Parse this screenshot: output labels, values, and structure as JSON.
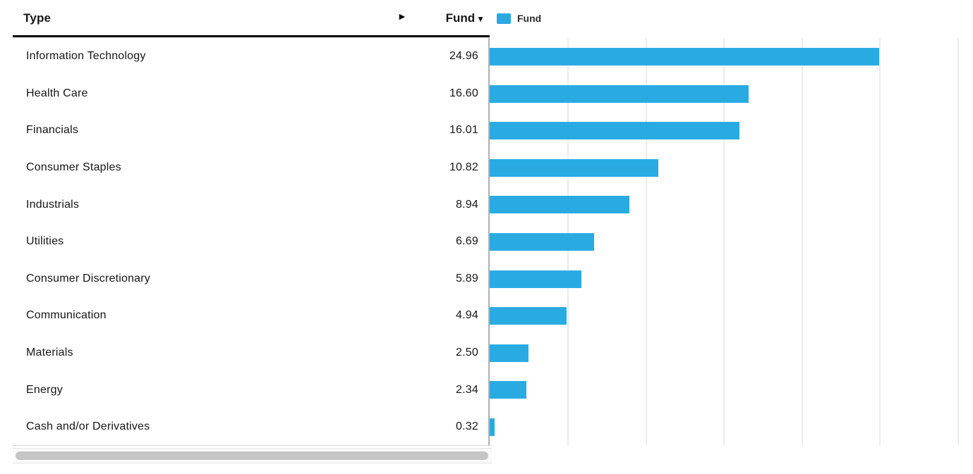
{
  "table": {
    "header": {
      "type_label": "Type",
      "fund_label": "Fund",
      "sort_indicator": "▼",
      "expand_indicator": "►"
    },
    "rows": [
      {
        "type": "Information Technology",
        "fund": "24.96"
      },
      {
        "type": "Health Care",
        "fund": "16.60"
      },
      {
        "type": "Financials",
        "fund": "16.01"
      },
      {
        "type": "Consumer Staples",
        "fund": "10.82"
      },
      {
        "type": "Industrials",
        "fund": "8.94"
      },
      {
        "type": "Utilities",
        "fund": "6.69"
      },
      {
        "type": "Consumer Discretionary",
        "fund": "5.89"
      },
      {
        "type": "Communication",
        "fund": "4.94"
      },
      {
        "type": "Materials",
        "fund": "2.50"
      },
      {
        "type": "Energy",
        "fund": "2.34"
      },
      {
        "type": "Cash and/or Derivatives",
        "fund": "0.32"
      }
    ]
  },
  "legend": {
    "label": "Fund"
  },
  "chart_data": {
    "type": "bar",
    "orientation": "horizontal",
    "title": "",
    "xlabel": "",
    "ylabel": "",
    "categories": [
      "Information Technology",
      "Health Care",
      "Financials",
      "Consumer Staples",
      "Industrials",
      "Utilities",
      "Consumer Discretionary",
      "Communication",
      "Materials",
      "Energy",
      "Cash and/or Derivatives"
    ],
    "series": [
      {
        "name": "Fund",
        "values": [
          24.96,
          16.6,
          16.01,
          10.82,
          8.94,
          6.69,
          5.89,
          4.94,
          2.5,
          2.34,
          0.32
        ]
      }
    ],
    "xlim": [
      0,
      31
    ],
    "gridline_interval": 5,
    "grid": true,
    "legend_position": "top",
    "bar_color": "#29abe2",
    "gridline_color": "#ececec",
    "axis_color": "#b0b0b0"
  }
}
